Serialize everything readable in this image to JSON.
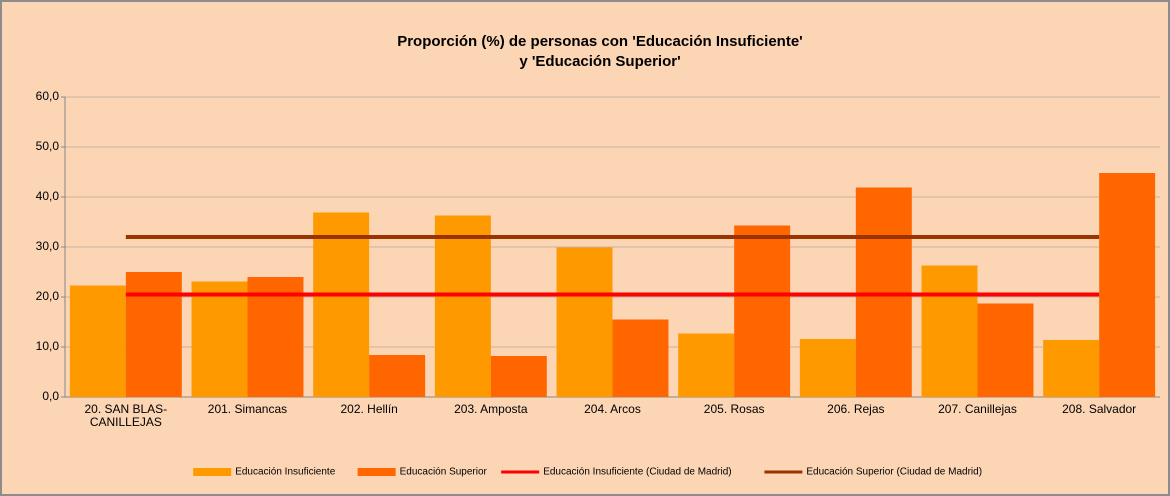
{
  "chart_data": {
    "type": "bar",
    "title": [
      "Proporción (%) de personas con 'Educación Insuficiente'",
      "y 'Educación Superior'"
    ],
    "categories": [
      "20. SAN BLAS-CANILLEJAS",
      "201. Simancas",
      "202. Hellín",
      "203. Amposta",
      "204. Arcos",
      "205. Rosas",
      "206. Rejas",
      "207. Canillejas",
      "208. Salvador"
    ],
    "series": [
      {
        "name": "Educación Insuficiente",
        "type": "bar",
        "color": "#FF9900",
        "values": [
          22.3,
          23.1,
          36.9,
          36.3,
          29.9,
          12.7,
          11.6,
          26.3,
          11.4
        ]
      },
      {
        "name": "Educación Superior",
        "type": "bar",
        "color": "#FF6600",
        "values": [
          25.0,
          24.0,
          8.4,
          8.2,
          15.5,
          34.3,
          41.9,
          18.7,
          44.8
        ]
      },
      {
        "name": "Educación Insuficiente (Ciudad de Madrid)",
        "type": "line",
        "color": "#FF0000",
        "values": [
          20.5,
          20.5,
          20.5,
          20.5,
          20.5,
          20.5,
          20.5,
          20.5,
          20.5
        ]
      },
      {
        "name": "Educación Superior (Ciudad de Madrid)",
        "type": "line",
        "color": "#993300",
        "values": [
          32.0,
          32.0,
          32.0,
          32.0,
          32.0,
          32.0,
          32.0,
          32.0,
          32.0
        ]
      }
    ],
    "ylim": [
      0,
      60
    ],
    "yticks": [
      {
        "value": 0,
        "label": "0,0"
      },
      {
        "value": 10,
        "label": "10,0"
      },
      {
        "value": 20,
        "label": "20,0"
      },
      {
        "value": 30,
        "label": "30,0"
      },
      {
        "value": 40,
        "label": "40,0"
      },
      {
        "value": 50,
        "label": "50,0"
      },
      {
        "value": 60,
        "label": "60,0"
      }
    ],
    "grid": true,
    "legend": "bottom"
  }
}
